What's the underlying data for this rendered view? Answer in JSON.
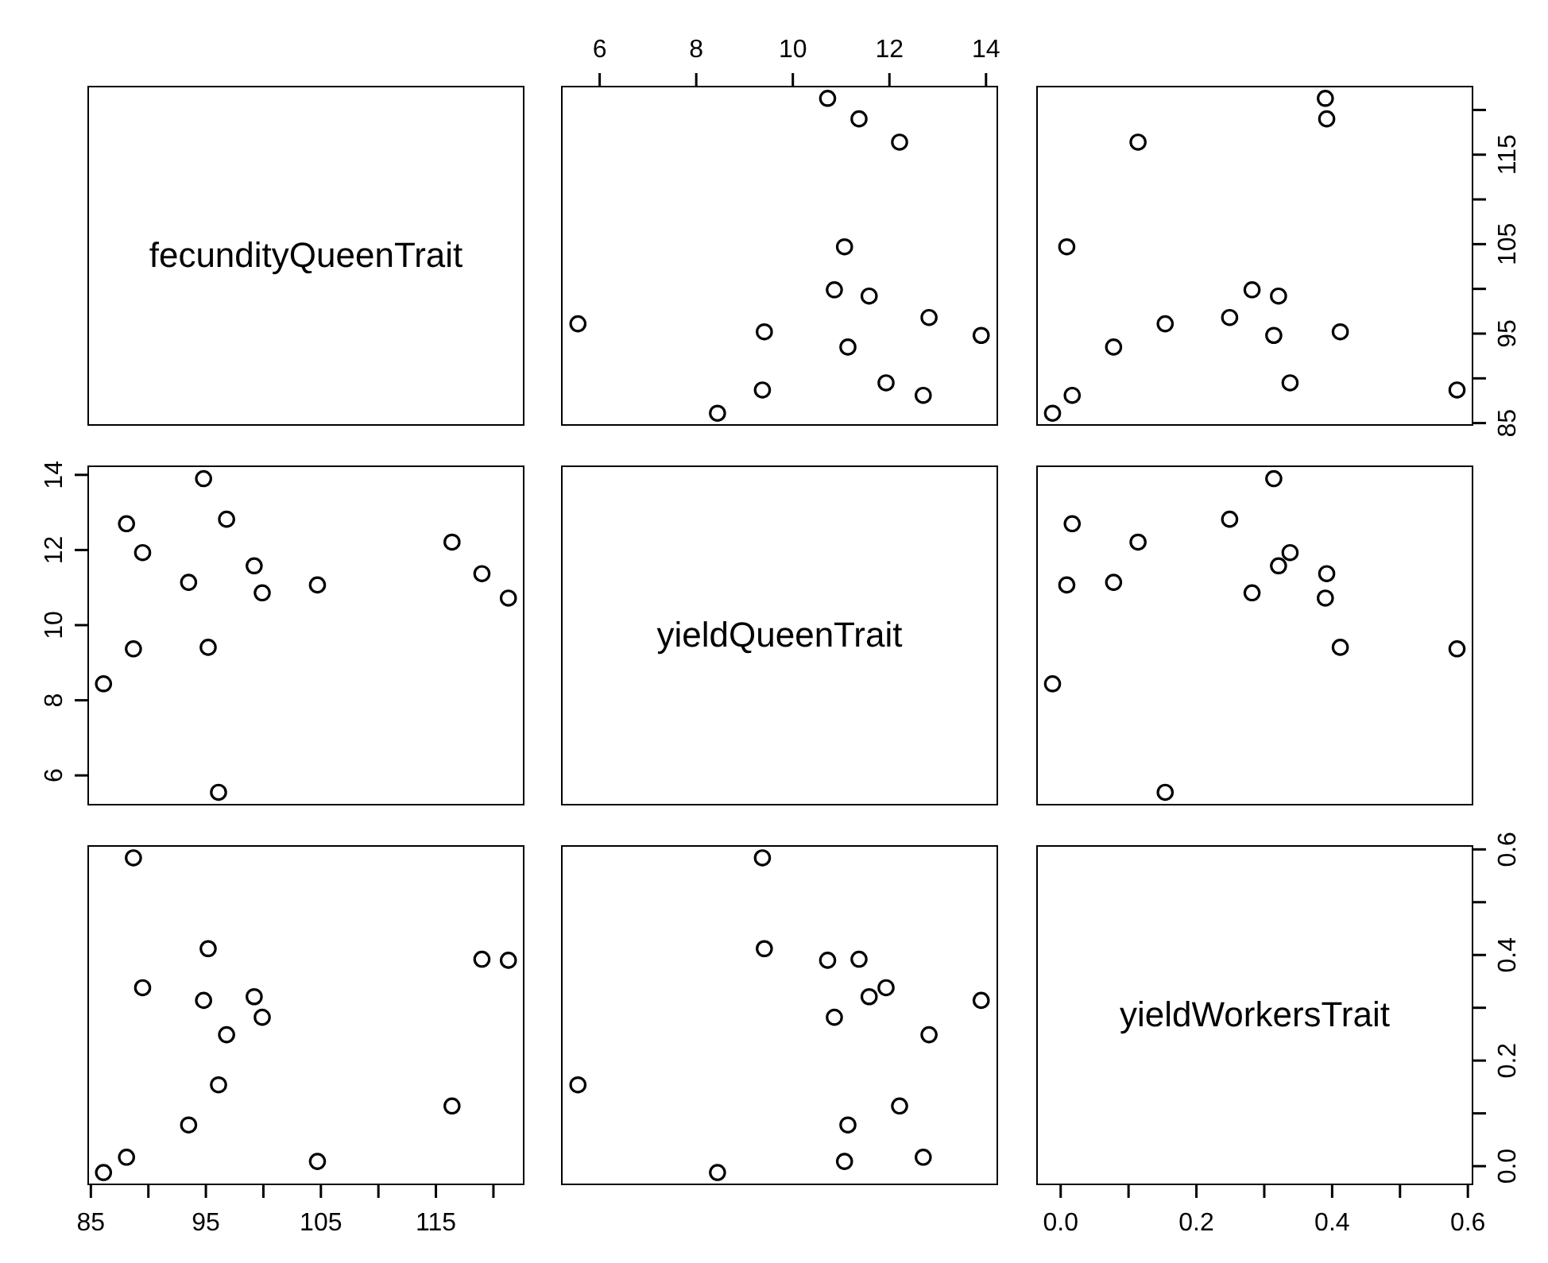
{
  "chart_data": [
    {
      "type": "other",
      "title": "fecundityQueenTrait"
    },
    {
      "type": "scatter",
      "marker": "circle",
      "xlim": [
        5.2,
        14.25
      ],
      "xticks": [
        6,
        8,
        10,
        12,
        14
      ],
      "y2lim": [
        84.7,
        122.7
      ],
      "tick_labels": "x",
      "series": [
        {
          "color": "#000000",
          "axis": "y2",
          "x": [
            8.44,
            12.7,
            9.37,
            11.93,
            11.14,
            13.9,
            9.41,
            5.55,
            12.82,
            11.58,
            10.86,
            11.07,
            12.21,
            11.37,
            10.72
          ],
          "values": [
            86.1,
            88.1,
            88.7,
            89.5,
            93.5,
            94.8,
            95.2,
            96.1,
            96.8,
            99.2,
            99.9,
            104.7,
            116.4,
            119.0,
            121.3
          ]
        }
      ]
    },
    {
      "type": "scatter",
      "marker": "circle",
      "xlim": [
        -0.036,
        0.608
      ],
      "y2lim": [
        84.7,
        122.7
      ],
      "y2ticks": [
        85,
        {
          "value": 90,
          "label": null
        },
        95,
        {
          "value": 100,
          "label": null
        },
        105,
        {
          "value": 110,
          "label": null
        },
        115,
        {
          "value": 120,
          "label": null
        }
      ],
      "tick_labels": "y",
      "series": [
        {
          "color": "#000000",
          "axis": "y2",
          "x": [
            -0.012,
            0.017,
            0.584,
            0.338,
            0.078,
            0.314,
            0.412,
            0.154,
            0.249,
            0.321,
            0.282,
            0.009,
            0.114,
            0.392,
            0.39
          ],
          "values": [
            86.1,
            88.1,
            88.7,
            89.5,
            93.5,
            94.8,
            95.2,
            96.1,
            96.8,
            99.2,
            99.9,
            104.7,
            116.4,
            119.0,
            121.3
          ]
        }
      ]
    },
    {
      "type": "scatter",
      "marker": "circle",
      "xlim": [
        84.7,
        122.7
      ],
      "ylim": [
        5.2,
        14.25
      ],
      "yticks": [
        6,
        8,
        10,
        12,
        14
      ],
      "tick_labels": "y",
      "series": [
        {
          "color": "#000000",
          "x": [
            86.1,
            88.1,
            88.7,
            89.5,
            93.5,
            94.8,
            95.2,
            96.1,
            96.8,
            99.2,
            99.9,
            104.7,
            116.4,
            119.0,
            121.3
          ],
          "values": [
            8.44,
            12.7,
            9.37,
            11.93,
            11.14,
            13.9,
            9.41,
            5.55,
            12.82,
            11.58,
            10.86,
            11.07,
            12.21,
            11.37,
            10.72
          ]
        }
      ]
    },
    {
      "type": "other",
      "title": "yieldQueenTrait"
    },
    {
      "type": "scatter",
      "marker": "circle",
      "xlim": [
        -0.036,
        0.608
      ],
      "ylim": [
        5.2,
        14.25
      ],
      "tick_labels": false,
      "series": [
        {
          "color": "#000000",
          "x": [
            -0.012,
            0.017,
            0.584,
            0.338,
            0.078,
            0.314,
            0.412,
            0.154,
            0.249,
            0.321,
            0.282,
            0.009,
            0.114,
            0.392,
            0.39
          ],
          "values": [
            8.44,
            12.7,
            9.37,
            11.93,
            11.14,
            13.9,
            9.41,
            5.55,
            12.82,
            11.58,
            10.86,
            11.07,
            12.21,
            11.37,
            10.72
          ]
        }
      ]
    },
    {
      "type": "scatter",
      "marker": "circle",
      "xlim": [
        84.7,
        122.7
      ],
      "xticks": [
        85,
        {
          "value": 90,
          "label": null
        },
        95,
        {
          "value": 100,
          "label": null
        },
        105,
        {
          "value": 110,
          "label": null
        },
        115,
        {
          "value": 120,
          "label": null
        }
      ],
      "y2lim": [
        -0.036,
        0.608
      ],
      "tick_labels": "x",
      "series": [
        {
          "color": "#000000",
          "axis": "y2",
          "x": [
            86.1,
            88.1,
            88.7,
            89.5,
            93.5,
            94.8,
            95.2,
            96.1,
            96.8,
            99.2,
            99.9,
            104.7,
            116.4,
            119.0,
            121.3
          ],
          "values": [
            -0.012,
            0.017,
            0.584,
            0.338,
            0.078,
            0.314,
            0.412,
            0.154,
            0.249,
            0.321,
            0.282,
            0.009,
            0.114,
            0.392,
            0.39
          ]
        }
      ]
    },
    {
      "type": "scatter",
      "marker": "circle",
      "xlim": [
        5.2,
        14.25
      ],
      "y2lim": [
        -0.036,
        0.608
      ],
      "tick_labels": false,
      "series": [
        {
          "color": "#000000",
          "axis": "y2",
          "x": [
            8.44,
            12.7,
            9.37,
            11.93,
            11.14,
            13.9,
            9.41,
            5.55,
            12.82,
            11.58,
            10.86,
            11.07,
            12.21,
            11.37,
            10.72
          ],
          "values": [
            -0.012,
            0.017,
            0.584,
            0.338,
            0.078,
            0.314,
            0.412,
            0.154,
            0.249,
            0.321,
            0.282,
            0.009,
            0.114,
            0.392,
            0.39
          ]
        }
      ]
    },
    {
      "type": "scatter",
      "title": "yieldWorkersTrait",
      "xlim": [
        -0.036,
        0.608
      ],
      "xticks": [
        {
          "value": 0,
          "label": "0.0"
        },
        {
          "value": 0.1,
          "label": null
        },
        0.2,
        {
          "value": 0.3,
          "label": null
        },
        0.4,
        {
          "value": 0.5,
          "label": null
        },
        0.6
      ],
      "y2lim": [
        -0.036,
        0.608
      ],
      "y2ticks": [
        {
          "value": 0,
          "label": "0.0"
        },
        {
          "value": 0.1,
          "label": null
        },
        0.2,
        {
          "value": 0.3,
          "label": null
        },
        0.4,
        {
          "value": 0.5,
          "label": null
        },
        0.6
      ]
    }
  ]
}
